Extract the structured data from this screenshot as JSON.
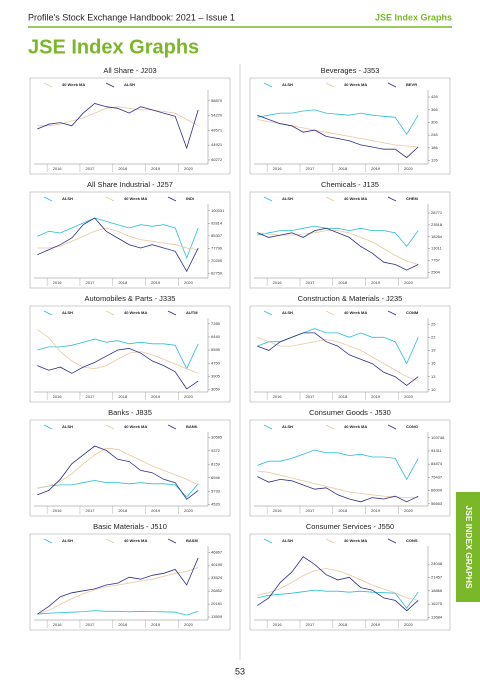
{
  "header": {
    "left": "Profile's Stock Exchange Handbook: 2021 – Issue 1",
    "right": "JSE Index Graphs"
  },
  "title": "JSE Index Graphs",
  "side_tab": "JSE INDEX GRAPHS",
  "page_number": "53",
  "chart_data": [
    {
      "type": "line",
      "title": "All Share - J203",
      "x": [
        2015.7,
        2016.05,
        2016.4,
        2016.75,
        2017.1,
        2017.45,
        2017.8,
        2018.15,
        2018.5,
        2018.85,
        2019.2,
        2019.55,
        2019.9,
        2020.25,
        2020.6
      ],
      "xlim": [
        2015.6,
        2020.9
      ],
      "xticks": [
        2016,
        2017,
        2018,
        2019,
        2020
      ],
      "ylim": [
        39000,
        61000
      ],
      "yticks": [
        40272,
        44921,
        49571,
        54220,
        58870
      ],
      "series": [
        {
          "name": "40 Week MA",
          "color": "#e8c9a0",
          "values": [
            51000,
            51000,
            51500,
            52500,
            53500,
            55000,
            56500,
            57000,
            56500,
            56000,
            56000,
            55500,
            55000,
            53000,
            51000
          ]
        },
        {
          "name": "ALSH",
          "color": "#2e2f86",
          "values": [
            50000,
            51500,
            52000,
            51000,
            55000,
            58000,
            57000,
            56500,
            55000,
            57000,
            56000,
            55000,
            54000,
            44000,
            56000
          ]
        }
      ]
    },
    {
      "type": "line",
      "title": "Beverages - J353",
      "x": [
        2015.7,
        2016.05,
        2016.4,
        2016.75,
        2017.1,
        2017.45,
        2017.8,
        2018.15,
        2018.5,
        2018.85,
        2019.2,
        2019.55,
        2019.9,
        2020.25,
        2020.6
      ],
      "xlim": [
        2015.6,
        2020.9
      ],
      "xticks": [
        2016,
        2017,
        2018,
        2019,
        2020
      ],
      "ylim": [
        110,
        440
      ],
      "yticks": [
        126,
        186,
        246,
        306,
        366,
        426
      ],
      "series": [
        {
          "name": "ALSH",
          "color": "#2bbfd6",
          "values": [
            330,
            340,
            350,
            350,
            360,
            365,
            350,
            345,
            340,
            350,
            340,
            335,
            330,
            250,
            340
          ]
        },
        {
          "name": "40 Week MA",
          "color": "#e8c9a0",
          "values": [
            320,
            310,
            300,
            290,
            280,
            270,
            260,
            250,
            240,
            230,
            220,
            210,
            200,
            195,
            190
          ]
        },
        {
          "name": "BEVR",
          "color": "#2e2f86",
          "values": [
            340,
            320,
            300,
            290,
            260,
            270,
            240,
            230,
            220,
            200,
            190,
            180,
            180,
            140,
            190
          ]
        }
      ]
    },
    {
      "type": "line",
      "title": "All Share Industrial - J257",
      "x": [
        2015.7,
        2016.05,
        2016.4,
        2016.75,
        2017.1,
        2017.45,
        2017.8,
        2018.15,
        2018.5,
        2018.85,
        2019.2,
        2019.55,
        2019.9,
        2020.25,
        2020.6
      ],
      "xlim": [
        2015.6,
        2020.9
      ],
      "xticks": [
        2016,
        2017,
        2018,
        2019,
        2020
      ],
      "ylim": [
        60000,
        102000
      ],
      "yticks": [
        62750,
        70250,
        77799,
        85307,
        92814,
        100331
      ],
      "series": [
        {
          "name": "ALSH",
          "color": "#2bbfd6",
          "values": [
            85000,
            88000,
            87000,
            90000,
            93000,
            96000,
            94000,
            92000,
            90000,
            92000,
            91000,
            92000,
            90000,
            72000,
            90000
          ]
        },
        {
          "name": "40 Week MA",
          "color": "#e8c9a0",
          "values": [
            78000,
            78000,
            79000,
            82000,
            85000,
            88000,
            90000,
            88000,
            85000,
            83000,
            82000,
            81000,
            80000,
            78000,
            77000
          ]
        },
        {
          "name": "INDI",
          "color": "#2e2f86",
          "values": [
            74000,
            77000,
            80000,
            84000,
            92000,
            96000,
            88000,
            84000,
            80000,
            78000,
            80000,
            78000,
            76000,
            64000,
            78000
          ]
        }
      ]
    },
    {
      "type": "line",
      "title": "Chemicals - J135",
      "x": [
        2015.7,
        2016.05,
        2016.4,
        2016.75,
        2017.1,
        2017.45,
        2017.8,
        2018.15,
        2018.5,
        2018.85,
        2019.2,
        2019.55,
        2019.9,
        2020.25,
        2020.6
      ],
      "xlim": [
        2015.6,
        2020.9
      ],
      "xticks": [
        2016,
        2017,
        2018,
        2019,
        2020
      ],
      "ylim": [
        0,
        31000
      ],
      "yticks": [
        2504,
        7757,
        13011,
        18264,
        23518,
        28771
      ],
      "series": [
        {
          "name": "ALSH",
          "color": "#2bbfd6",
          "values": [
            19000,
            20000,
            21000,
            21000,
            22000,
            23000,
            22000,
            22000,
            21000,
            22000,
            21000,
            21000,
            20000,
            14000,
            21000
          ]
        },
        {
          "name": "40 Week MA",
          "color": "#e8c9a0",
          "values": [
            20000,
            19500,
            19000,
            19000,
            19500,
            20000,
            21000,
            21000,
            20000,
            18000,
            16000,
            13000,
            10000,
            7500,
            6000
          ]
        },
        {
          "name": "CHEM",
          "color": "#2e2f86",
          "values": [
            20000,
            18000,
            19000,
            20000,
            18000,
            21000,
            22000,
            20000,
            18000,
            14000,
            11000,
            7000,
            6000,
            3500,
            6000
          ]
        }
      ]
    },
    {
      "type": "line",
      "title": "Automobiles & Parts - J335",
      "x": [
        2015.7,
        2016.05,
        2016.4,
        2016.75,
        2017.1,
        2017.45,
        2017.8,
        2018.15,
        2018.5,
        2018.85,
        2019.2,
        2019.55,
        2019.9,
        2020.25,
        2020.6
      ],
      "xlim": [
        2015.6,
        2020.9
      ],
      "xticks": [
        2016,
        2017,
        2018,
        2019,
        2020
      ],
      "ylim": [
        2900,
        7400
      ],
      "yticks": [
        3059,
        3905,
        4750,
        5595,
        6440,
        7285
      ],
      "series": [
        {
          "name": "ALSH",
          "color": "#2bbfd6",
          "values": [
            5600,
            5800,
            5800,
            5900,
            6100,
            6300,
            6100,
            6200,
            6000,
            6100,
            6000,
            6000,
            5900,
            4400,
            6000
          ]
        },
        {
          "name": "40 Week MA",
          "color": "#e8c9a0",
          "values": [
            6900,
            6400,
            5500,
            4900,
            4500,
            4400,
            4600,
            5000,
            5400,
            5500,
            5300,
            5000,
            4700,
            4400,
            4100
          ]
        },
        {
          "name": "AUTM",
          "color": "#2e2f86",
          "values": [
            4600,
            4300,
            4500,
            4100,
            4500,
            4800,
            5200,
            5600,
            5700,
            5400,
            4900,
            4600,
            4200,
            3100,
            3600
          ]
        }
      ]
    },
    {
      "type": "line",
      "title": "Construction & Materials - J235",
      "x": [
        2015.7,
        2016.05,
        2016.4,
        2016.75,
        2017.1,
        2017.45,
        2017.8,
        2018.15,
        2018.5,
        2018.85,
        2019.2,
        2019.55,
        2019.9,
        2020.25,
        2020.6
      ],
      "xlim": [
        2015.6,
        2020.9
      ],
      "xticks": [
        2016,
        2017,
        2018,
        2019,
        2020
      ],
      "ylim": [
        9.5,
        25.5
      ],
      "yticks": [
        10,
        13,
        16,
        19,
        22,
        25
      ],
      "series": [
        {
          "name": "ALSH",
          "color": "#2bbfd6",
          "values": [
            20,
            21,
            21,
            22,
            23,
            24,
            23,
            23,
            22,
            23,
            22,
            22,
            21,
            16,
            22
          ]
        },
        {
          "name": "40 Week MA",
          "color": "#e8c9a0",
          "values": [
            22,
            21,
            20,
            20,
            20.5,
            21,
            21.5,
            21,
            20,
            19,
            17.5,
            16,
            14.5,
            13,
            12
          ]
        },
        {
          "name": "CONM",
          "color": "#2e2f86",
          "values": [
            20,
            19,
            21,
            22,
            23,
            23,
            21,
            20,
            18,
            17,
            16,
            14,
            13,
            11,
            13
          ]
        }
      ]
    },
    {
      "type": "line",
      "title": "Banks - J835",
      "x": [
        2015.7,
        2016.05,
        2016.4,
        2016.75,
        2017.1,
        2017.45,
        2017.8,
        2018.15,
        2018.5,
        2018.85,
        2019.2,
        2019.55,
        2019.9,
        2020.25,
        2020.6
      ],
      "xlim": [
        2015.6,
        2020.9
      ],
      "xticks": [
        2016,
        2017,
        2018,
        2019,
        2020
      ],
      "ylim": [
        4400,
        10700
      ],
      "yticks": [
        4520,
        5733,
        6946,
        8159,
        9372,
        10585
      ],
      "series": [
        {
          "name": "ALSH",
          "color": "#2bbfd6",
          "values": [
            6000,
            6200,
            6300,
            6300,
            6500,
            6700,
            6500,
            6500,
            6400,
            6500,
            6400,
            6400,
            6300,
            5200,
            6400
          ]
        },
        {
          "name": "40 Week MA",
          "color": "#e8c9a0",
          "values": [
            6000,
            6200,
            6600,
            7300,
            8200,
            9000,
            9600,
            9500,
            9000,
            8500,
            8000,
            7600,
            7200,
            6800,
            6300
          ]
        },
        {
          "name": "BANK",
          "color": "#2e2f86",
          "values": [
            5400,
            5800,
            6800,
            8200,
            9000,
            9800,
            9400,
            8600,
            8400,
            7600,
            7400,
            6800,
            6500,
            5000,
            5800
          ]
        }
      ]
    },
    {
      "type": "line",
      "title": "Consumer Goods - J530",
      "x": [
        2015.7,
        2016.05,
        2016.4,
        2016.75,
        2017.1,
        2017.45,
        2017.8,
        2018.15,
        2018.5,
        2018.85,
        2019.2,
        2019.55,
        2019.9,
        2020.25,
        2020.6
      ],
      "xlim": [
        2015.6,
        2020.9
      ],
      "xticks": [
        2016,
        2017,
        2018,
        2019,
        2020
      ],
      "ylim": [
        55000,
        105000
      ],
      "yticks": [
        56563,
        66000,
        75437,
        84874,
        94311,
        103748
      ],
      "series": [
        {
          "name": "ALSH",
          "color": "#2bbfd6",
          "values": [
            84000,
            87000,
            87000,
            89000,
            92000,
            95000,
            93000,
            93000,
            91000,
            92000,
            90000,
            90000,
            89000,
            74000,
            89000
          ]
        },
        {
          "name": "40 Week MA",
          "color": "#e8c9a0",
          "values": [
            80000,
            79000,
            77000,
            75000,
            73000,
            71000,
            69000,
            67000,
            65000,
            64000,
            63000,
            62000,
            61500,
            61000,
            61000
          ]
        },
        {
          "name": "CONG",
          "color": "#2e2f86",
          "values": [
            76000,
            72000,
            74000,
            73000,
            70000,
            67000,
            68000,
            63000,
            60000,
            58000,
            61000,
            60000,
            62000,
            58000,
            62000
          ]
        }
      ]
    },
    {
      "type": "line",
      "title": "Basic Materials - J510",
      "x": [
        2015.7,
        2016.05,
        2016.4,
        2016.75,
        2017.1,
        2017.45,
        2017.8,
        2018.15,
        2018.5,
        2018.85,
        2019.2,
        2019.55,
        2019.9,
        2020.25,
        2020.6
      ],
      "xlim": [
        2015.6,
        2020.9
      ],
      "xticks": [
        2016,
        2017,
        2018,
        2019,
        2020
      ],
      "ylim": [
        12000,
        48000
      ],
      "yticks": [
        13509,
        20181,
        26852,
        33524,
        40195,
        46867
      ],
      "series": [
        {
          "name": "ALSH",
          "color": "#2bbfd6",
          "values": [
            15000,
            15500,
            15800,
            16000,
            16300,
            16800,
            16500,
            16500,
            16200,
            16500,
            16300,
            16200,
            16000,
            14500,
            16500
          ]
        },
        {
          "name": "40 Week MA",
          "color": "#e8c9a0",
          "values": [
            15000,
            17000,
            20000,
            23000,
            25500,
            27500,
            29000,
            30000,
            31000,
            32000,
            33000,
            34500,
            36000,
            37000,
            39000
          ]
        },
        {
          "name": "BASM",
          "color": "#2e2f86",
          "values": [
            15000,
            19000,
            24000,
            26000,
            27000,
            28000,
            30000,
            31000,
            34000,
            33000,
            35000,
            36000,
            38000,
            30000,
            44000
          ]
        }
      ]
    },
    {
      "type": "line",
      "title": "Consumer Services - J550",
      "x": [
        2015.7,
        2016.05,
        2016.4,
        2016.75,
        2017.1,
        2017.45,
        2017.8,
        2018.15,
        2018.5,
        2018.85,
        2019.2,
        2019.55,
        2019.9,
        2020.25,
        2020.6
      ],
      "xlim": [
        2015.6,
        2020.9
      ],
      "xticks": [
        2016,
        2017,
        2018,
        2019,
        2020
      ],
      "ylim": [
        13200,
        26800
      ],
      "yticks": [
        13684,
        16275,
        18866,
        21457,
        24048
      ],
      "series": [
        {
          "name": "ALSH",
          "color": "#2bbfd6",
          "values": [
            17500,
            18000,
            18200,
            18400,
            18700,
            19000,
            18800,
            18800,
            18600,
            18800,
            18600,
            18500,
            18400,
            15500,
            18600
          ]
        },
        {
          "name": "40 Week MA",
          "color": "#e8c9a0",
          "values": [
            18000,
            18500,
            19300,
            20500,
            21800,
            22800,
            23200,
            22800,
            22000,
            21000,
            20000,
            19200,
            18500,
            17500,
            17000
          ]
        },
        {
          "name": "CONS",
          "color": "#2e2f86",
          "values": [
            16000,
            17500,
            20500,
            22500,
            25500,
            24000,
            22000,
            21000,
            21500,
            19500,
            19000,
            17500,
            17000,
            15000,
            17000
          ]
        }
      ]
    }
  ]
}
